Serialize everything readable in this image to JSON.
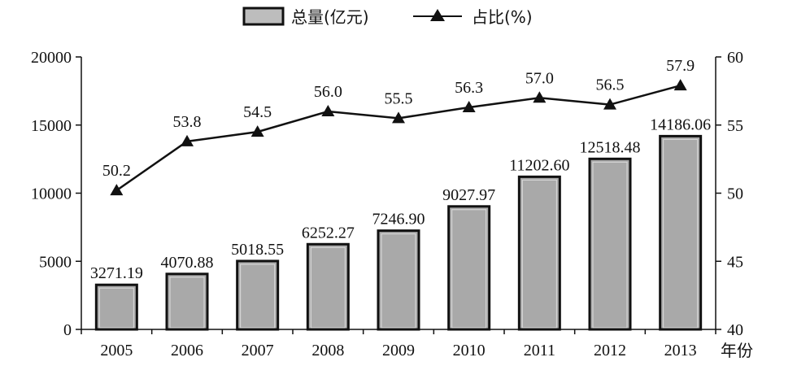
{
  "chart_data": {
    "type": "bar",
    "categories": [
      "2005",
      "2006",
      "2007",
      "2008",
      "2009",
      "2010",
      "2011",
      "2012",
      "2013"
    ],
    "x_unit_label": "年份",
    "series": [
      {
        "name": "总量(亿元)",
        "type": "bar",
        "axis": "left",
        "values": [
          3271.19,
          4070.88,
          5018.55,
          6252.27,
          7246.9,
          9027.97,
          11202.6,
          12518.48,
          14186.06
        ],
        "labels": [
          "3271.19",
          "4070.88",
          "5018.55",
          "6252.27",
          "7246.90",
          "9027.97",
          "11202.60",
          "12518.48",
          "14186.06"
        ]
      },
      {
        "name": "占比(%)",
        "type": "line",
        "marker": "triangle",
        "axis": "right",
        "values": [
          50.2,
          53.8,
          54.5,
          56.0,
          55.5,
          56.3,
          57.0,
          56.5,
          57.9
        ],
        "labels": [
          "50.2",
          "53.8",
          "54.5",
          "56.0",
          "55.5",
          "56.3",
          "57.0",
          "56.5",
          "57.9"
        ]
      }
    ],
    "legend": {
      "placement": "top-center",
      "bar_label": "总量(亿元)",
      "line_label": "占比(%)"
    },
    "y_left": {
      "ylim": [
        0,
        20000
      ],
      "ticks": [
        "0",
        "5000",
        "10000",
        "15000",
        "20000"
      ]
    },
    "y_right": {
      "ylim": [
        40,
        60
      ],
      "ticks": [
        "40",
        "45",
        "50",
        "55",
        "60"
      ]
    },
    "grid": false,
    "colors": {
      "bar_fill": "#a9a9a9",
      "bar_stroke": "#111111",
      "line": "#111111"
    }
  }
}
